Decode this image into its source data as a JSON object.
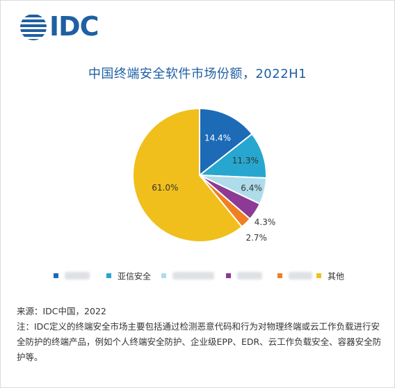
{
  "brand": {
    "logo_text": "IDC",
    "logo_color": "#1f5fa3"
  },
  "chart_data": {
    "type": "pie",
    "title": "中国终端安全软件市场份额，2022H1",
    "slices": [
      {
        "name": "",
        "value": 14.4,
        "label": "14.4%",
        "color": "#1d6ab7",
        "label_color": "#ffffff"
      },
      {
        "name": "亚信安全",
        "value": 11.3,
        "label": "11.3%",
        "color": "#27a7cf",
        "label_color": "#333333"
      },
      {
        "name": "",
        "value": 6.4,
        "label": "6.4%",
        "color": "#aedcea",
        "label_color": "#333333"
      },
      {
        "name": "",
        "value": 4.3,
        "label": "4.3%",
        "color": "#8c3a95",
        "label_color": "#333333"
      },
      {
        "name": "",
        "value": 2.7,
        "label": "2.7%",
        "color": "#ef7f22",
        "label_color": "#333333"
      },
      {
        "name": "其他",
        "value": 61.0,
        "label": "61.0%",
        "color": "#f0bf1b",
        "label_color": "#333333"
      }
    ],
    "start_angle": "12 o'clock",
    "direction": "clockwise",
    "legend_position": "bottom"
  },
  "notes": {
    "source": "来源：IDC中国，2022",
    "note": "注：IDC定义的终端安全市场主要包括通过检测恶意代码和行为对物理终端或云工作负载进行安全防护的终端产品，例如个人终端安全防护、企业级EPP、EDR、云工作负载安全、容器安全防护等。"
  }
}
